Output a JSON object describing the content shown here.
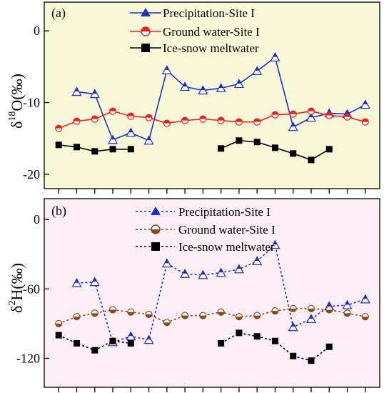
{
  "chart_data": [
    {
      "type": "line",
      "panel_label": "(a)",
      "ylabel": {
        "delta": "δ",
        "sup": "18",
        "rest": "O(‰)"
      },
      "background": "#f8f8d8",
      "x": [
        1,
        2,
        3,
        4,
        5,
        6,
        7,
        8,
        9,
        10,
        11,
        12,
        13,
        14,
        15,
        16,
        17,
        18
      ],
      "xlim": [
        0.2,
        18.8
      ],
      "ylim": [
        -22,
        4
      ],
      "yticks": [
        0,
        -10,
        -20
      ],
      "ytick_labels": [
        "0",
        "-10",
        "-20"
      ],
      "grid": false,
      "legend_position": "top-center",
      "series": [
        {
          "name": "Precipitation-Site I",
          "color": "#1c2fc9",
          "marker": "triangle",
          "line": "solid",
          "values": [
            null,
            -8.5,
            -8.8,
            -15.2,
            -14.2,
            -15.3,
            -5.5,
            -7.8,
            -8.3,
            -8.0,
            -7.4,
            -5.6,
            -3.7,
            -13.4,
            -12.1,
            -11.5,
            -11.6,
            -10.3
          ]
        },
        {
          "name": "Ground water-Site I",
          "color": "#e8221e",
          "marker": "half-circle",
          "line": "solid",
          "values": [
            -13.6,
            -12.6,
            -12.3,
            -11.2,
            -11.9,
            -12.1,
            -12.9,
            -12.5,
            -12.3,
            -12.5,
            -12.7,
            -12.7,
            -11.7,
            -11.6,
            -11.2,
            -11.8,
            -12.0,
            -12.7
          ]
        },
        {
          "name": "Ice-snow meltwater",
          "color": "#000000",
          "marker": "square",
          "line": "solid",
          "values": [
            -15.9,
            -16.2,
            -16.8,
            -16.5,
            -16.5,
            null,
            null,
            null,
            null,
            -16.4,
            -15.3,
            -15.5,
            -16.3,
            -17.1,
            -18.0,
            -16.5,
            null,
            null
          ]
        }
      ]
    },
    {
      "type": "line",
      "panel_label": "(b)",
      "ylabel": {
        "delta": "δ",
        "sup": "2",
        "rest": "H(‰)"
      },
      "background": "#fbeef4",
      "x": [
        1,
        2,
        3,
        4,
        5,
        6,
        7,
        8,
        9,
        10,
        11,
        12,
        13,
        14,
        15,
        16,
        17,
        18
      ],
      "xlim": [
        0.2,
        18.8
      ],
      "ylim": [
        -145,
        18
      ],
      "yticks": [
        0,
        -60,
        -120
      ],
      "ytick_labels": [
        "0",
        "-60",
        "-120"
      ],
      "grid": false,
      "legend_position": "top-center",
      "series": [
        {
          "name": "Precipitation-Site I",
          "color": "#1c2fc9",
          "marker": "triangle",
          "line": "dashed",
          "values": [
            null,
            -55,
            -54,
            -106,
            -101,
            -104,
            -38,
            -47,
            -48,
            -46,
            -43,
            -36,
            -22,
            -93,
            -86,
            -75,
            -74,
            -69
          ]
        },
        {
          "name": "Ground water-Site I",
          "color": "#8b4a1d",
          "marker": "half-circle",
          "line": "dashed",
          "values": [
            -90,
            -84,
            -81,
            -78,
            -80,
            -82,
            -89,
            -83,
            -83,
            -80,
            -84,
            -83,
            -79,
            -77,
            -77,
            -78,
            -81,
            -84
          ]
        },
        {
          "name": "Ice-snow meltwater",
          "color": "#000000",
          "marker": "square",
          "line": "dashed",
          "values": [
            -100,
            -107,
            -113,
            -105,
            -107,
            null,
            null,
            null,
            null,
            -107,
            -98,
            -101,
            -105,
            -118,
            -122,
            -110,
            null,
            null
          ]
        }
      ]
    }
  ]
}
